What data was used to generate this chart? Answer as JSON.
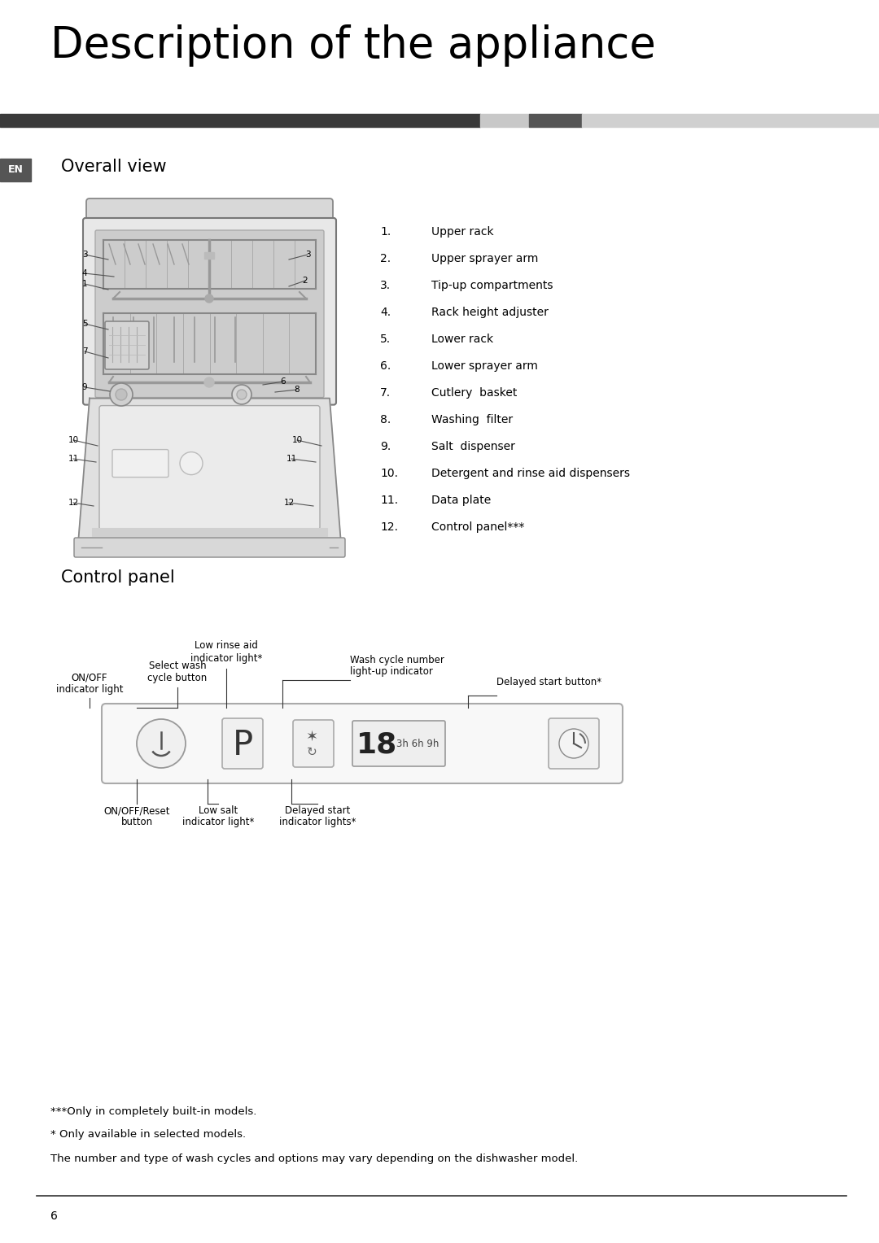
{
  "title": "Description of the appliance",
  "section1": "Overall view",
  "section2": "Control panel",
  "items_num": [
    "1.",
    "2.",
    "3.",
    "4.",
    "5.",
    "6.",
    "7.",
    "8.",
    "9.",
    "10.",
    "11.",
    "12."
  ],
  "items_desc": [
    "Upper rack",
    "Upper sprayer arm",
    "Tip-up compartments",
    "Rack height adjuster",
    "Lower rack",
    "Lower sprayer arm",
    "Cutlery  basket",
    "Washing  filter",
    "Salt  dispenser",
    "Detergent and rinse aid dispensers",
    "Data plate",
    "Control panel***"
  ],
  "en_label": "EN",
  "footer_note1": "***Only in completely built-in models.",
  "footer_note2": "* Only available in selected models.",
  "footer_note3": "The number and type of wash cycles and options may vary depending on the dishwasher model.",
  "page_number": "6",
  "bg_color": "#ffffff",
  "text_color": "#000000"
}
